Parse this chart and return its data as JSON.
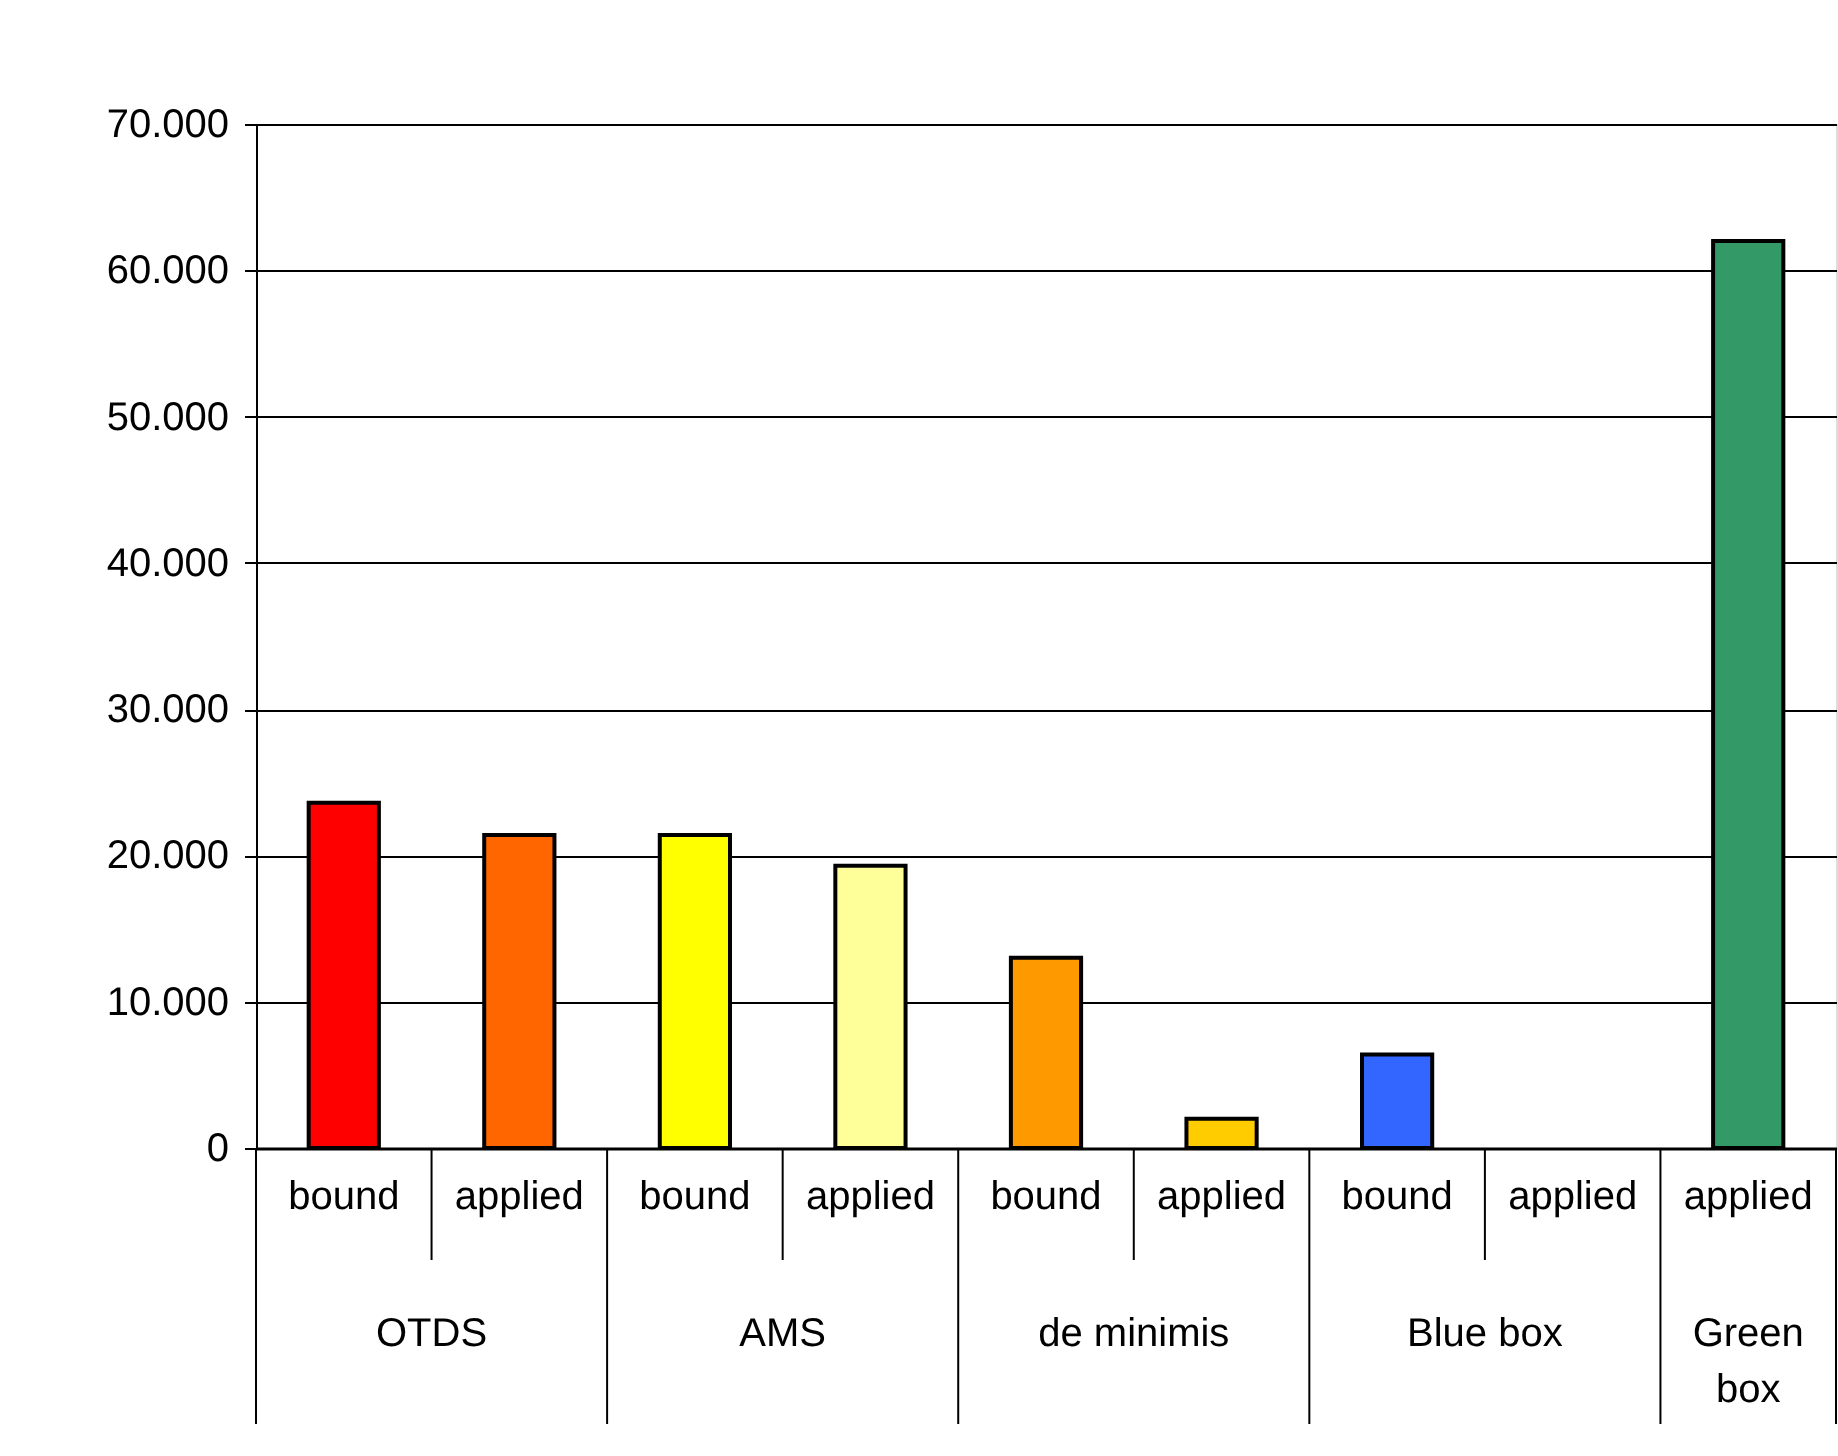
{
  "chart_data": {
    "type": "bar",
    "categories": [
      "bound",
      "applied",
      "bound",
      "applied",
      "bound",
      "applied",
      "bound",
      "applied",
      "applied"
    ],
    "values": [
      23600,
      21400,
      21400,
      19300,
      13000,
      2000,
      6400,
      null,
      62000
    ],
    "colors": [
      "#ff0000",
      "#ff6600",
      "#ffff00",
      "#ffff99",
      "#ff9900",
      "#ffcc00",
      "#3366ff",
      null,
      "#339966"
    ],
    "ylim": [
      0,
      70000
    ],
    "yticks": [
      0,
      {
        "value": 10000,
        "label": "10.000"
      },
      {
        "value": 20000,
        "label": "20.000"
      },
      {
        "value": 30000,
        "label": "30.000"
      },
      {
        "value": 40000,
        "label": "40.000"
      },
      {
        "value": 50000,
        "label": "50.000"
      },
      {
        "value": 60000,
        "label": "60.000"
      },
      {
        "value": 70000,
        "label": "70.000"
      }
    ],
    "grid": "y",
    "annotations": [
      "OTDS",
      "AMS",
      "de minimis",
      "Blue box",
      "Green box"
    ]
  }
}
